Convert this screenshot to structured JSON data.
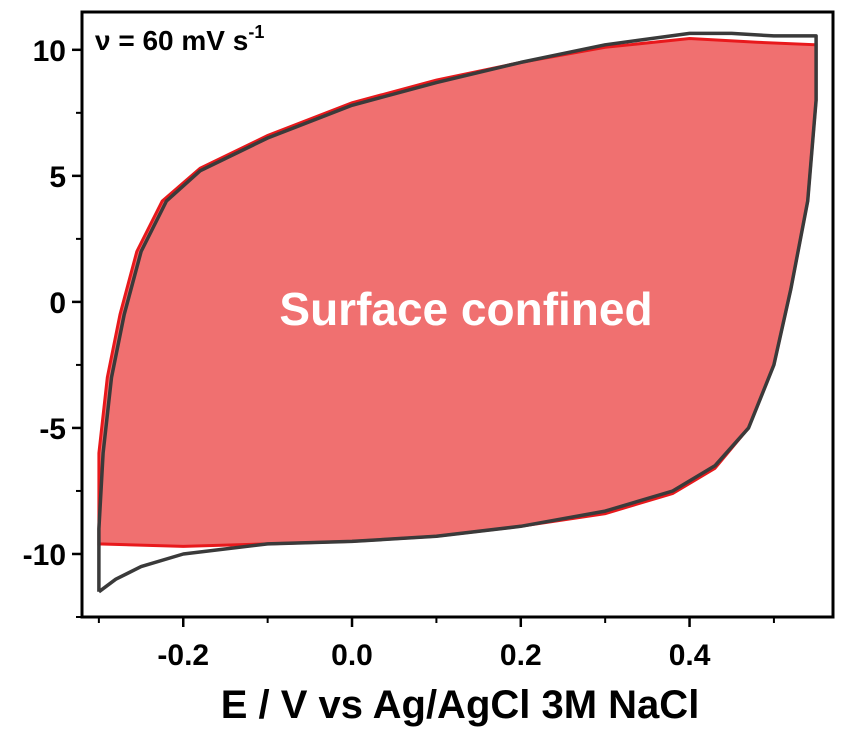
{
  "chart_data": {
    "type": "line",
    "title": "",
    "xlabel": "E / V vs Ag/AgCl 3M NaCl",
    "ylabel": "",
    "xlim": [
      -0.32,
      0.57
    ],
    "ylim": [
      -12.5,
      11.5
    ],
    "x_ticks": [
      -0.2,
      0.0,
      0.2,
      0.4
    ],
    "x_tick_labels": [
      "-0.2",
      "0.0",
      "0.2",
      "0.4"
    ],
    "y_ticks": [
      -10,
      -5,
      0,
      5,
      10
    ],
    "y_tick_labels": [
      "-10",
      "-5",
      "0",
      "5",
      "10"
    ],
    "grid": false,
    "legend": "none",
    "scan_rate_label": {
      "symbol": "ν",
      "text": " = 60 mV s",
      "superscript": "-1"
    },
    "annotation": "Surface confined",
    "colors": {
      "measured": "#3a3a3a",
      "fit_fill": "#f07070",
      "fit_line": "#e8191c"
    },
    "series": [
      {
        "style": "black-line",
        "points": [
          [
            -0.3,
            -11.5
          ],
          [
            -0.3,
            -9.0
          ],
          [
            -0.295,
            -6.0
          ],
          [
            -0.285,
            -3.0
          ],
          [
            -0.27,
            -0.5
          ],
          [
            -0.25,
            2.0
          ],
          [
            -0.22,
            4.0
          ],
          [
            -0.18,
            5.2
          ],
          [
            -0.1,
            6.5
          ],
          [
            0.0,
            7.8
          ],
          [
            0.1,
            8.7
          ],
          [
            0.2,
            9.5
          ],
          [
            0.3,
            10.2
          ],
          [
            0.4,
            10.65
          ],
          [
            0.45,
            10.65
          ],
          [
            0.5,
            10.55
          ],
          [
            0.55,
            10.55
          ],
          [
            0.55,
            8.0
          ],
          [
            0.54,
            4.0
          ],
          [
            0.52,
            0.5
          ],
          [
            0.5,
            -2.5
          ],
          [
            0.47,
            -5.0
          ],
          [
            0.43,
            -6.5
          ],
          [
            0.38,
            -7.5
          ],
          [
            0.3,
            -8.3
          ],
          [
            0.2,
            -8.9
          ],
          [
            0.1,
            -9.3
          ],
          [
            0.0,
            -9.5
          ],
          [
            -0.1,
            -9.6
          ],
          [
            -0.2,
            -10.0
          ],
          [
            -0.25,
            -10.5
          ],
          [
            -0.28,
            -11.0
          ],
          [
            -0.3,
            -11.5
          ]
        ]
      },
      {
        "style": "red-filled",
        "points": [
          [
            -0.3,
            -9.6
          ],
          [
            -0.3,
            -6.0
          ],
          [
            -0.29,
            -3.0
          ],
          [
            -0.275,
            -0.5
          ],
          [
            -0.255,
            2.0
          ],
          [
            -0.225,
            4.0
          ],
          [
            -0.18,
            5.3
          ],
          [
            -0.1,
            6.6
          ],
          [
            0.0,
            7.9
          ],
          [
            0.1,
            8.8
          ],
          [
            0.2,
            9.5
          ],
          [
            0.3,
            10.1
          ],
          [
            0.4,
            10.45
          ],
          [
            0.48,
            10.3
          ],
          [
            0.55,
            10.2
          ],
          [
            0.55,
            8.0
          ],
          [
            0.54,
            4.0
          ],
          [
            0.52,
            0.5
          ],
          [
            0.5,
            -2.5
          ],
          [
            0.47,
            -5.0
          ],
          [
            0.43,
            -6.6
          ],
          [
            0.38,
            -7.6
          ],
          [
            0.3,
            -8.4
          ],
          [
            0.2,
            -8.9
          ],
          [
            0.1,
            -9.3
          ],
          [
            0.0,
            -9.5
          ],
          [
            -0.1,
            -9.6
          ],
          [
            -0.2,
            -9.7
          ],
          [
            -0.3,
            -9.6
          ]
        ]
      }
    ]
  }
}
